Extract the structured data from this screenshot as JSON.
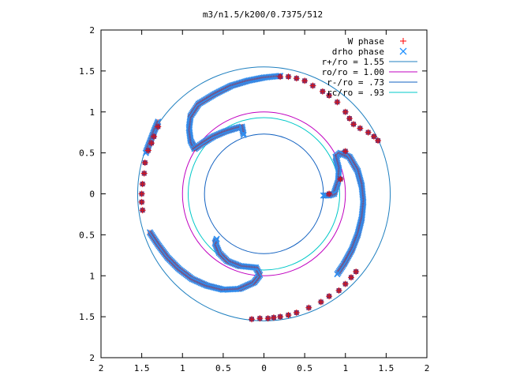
{
  "chart_data": {
    "type": "scatter",
    "title": "m3/n1.5/k200/0.7375/512",
    "xlim": [
      -2,
      2
    ],
    "ylim": [
      -2,
      2
    ],
    "x_tick_labels": [
      "2",
      "1.5",
      "1",
      "0.5",
      "0",
      "0.5",
      "1",
      "1.5",
      "2"
    ],
    "y_tick_labels": [
      "2",
      "1.5",
      "1",
      "0.5",
      "0",
      "0.5",
      "1",
      "1.5",
      "2"
    ],
    "x_tick_values": [
      -2,
      -1.5,
      -1,
      -0.5,
      0,
      0.5,
      1,
      1.5,
      2
    ],
    "y_tick_values": [
      2,
      1.5,
      1,
      0.5,
      0,
      -0.5,
      -1,
      -1.5,
      -2
    ],
    "legend_position": "top-right",
    "legend": [
      {
        "label": "W phase",
        "type": "points",
        "marker": "+",
        "color": "#ff0000"
      },
      {
        "label": "drho phase",
        "type": "points",
        "marker": "x",
        "color": "#1e90ff"
      },
      {
        "label": "r+/ro = 1.55",
        "type": "circle",
        "radius": 1.55,
        "color": "#2080c0"
      },
      {
        "label": "ro/ro = 1.00",
        "type": "circle",
        "radius": 1.0,
        "color": "#c000c0"
      },
      {
        "label": "r-/ro = .73",
        "type": "circle",
        "radius": 0.73,
        "color": "#1060c0"
      },
      {
        "label": "rc/ro = .93",
        "type": "circle",
        "radius": 0.93,
        "color": "#00c8c8"
      }
    ],
    "series": [
      {
        "name": "W phase",
        "points": [
          [
            -0.15,
            -1.53
          ],
          [
            -0.05,
            -1.52
          ],
          [
            0.05,
            -1.52
          ],
          [
            0.12,
            -1.51
          ],
          [
            0.2,
            -1.5
          ],
          [
            0.3,
            -1.48
          ],
          [
            0.4,
            -1.45
          ],
          [
            0.55,
            -1.39
          ],
          [
            0.7,
            -1.32
          ],
          [
            0.8,
            -1.25
          ],
          [
            0.92,
            -1.18
          ],
          [
            1.0,
            -1.1
          ],
          [
            1.07,
            -1.02
          ],
          [
            1.13,
            -0.95
          ],
          [
            -1.5,
            0.0
          ],
          [
            -1.5,
            -0.1
          ],
          [
            -1.49,
            -0.2
          ],
          [
            -1.49,
            0.12
          ],
          [
            -1.47,
            0.25
          ],
          [
            -1.46,
            0.38
          ],
          [
            -1.42,
            0.53
          ],
          [
            -1.38,
            0.62
          ],
          [
            -1.35,
            0.7
          ],
          [
            -1.3,
            0.82
          ],
          [
            0.2,
            1.43
          ],
          [
            0.3,
            1.43
          ],
          [
            0.4,
            1.41
          ],
          [
            0.5,
            1.38
          ],
          [
            0.6,
            1.32
          ],
          [
            0.72,
            1.25
          ],
          [
            0.8,
            1.2
          ],
          [
            0.9,
            1.12
          ],
          [
            1.0,
            1.0
          ],
          [
            1.05,
            0.92
          ],
          [
            1.1,
            0.85
          ],
          [
            1.18,
            0.8
          ],
          [
            1.28,
            0.75
          ],
          [
            1.35,
            0.7
          ],
          [
            1.4,
            0.65
          ],
          [
            1.0,
            0.52
          ],
          [
            0.94,
            0.18
          ],
          [
            0.8,
            0.0
          ]
        ]
      },
      {
        "name": "drho phase",
        "tracks": [
          [
            [
              -0.85,
              0.55
            ],
            [
              -0.9,
              0.65
            ],
            [
              -0.92,
              0.8
            ],
            [
              -0.9,
              0.95
            ],
            [
              -0.8,
              1.1
            ],
            [
              -0.6,
              1.22
            ],
            [
              -0.4,
              1.32
            ],
            [
              -0.2,
              1.38
            ],
            [
              0.0,
              1.42
            ],
            [
              0.2,
              1.44
            ]
          ],
          [
            [
              -0.85,
              0.55
            ],
            [
              -0.75,
              0.62
            ],
            [
              -0.62,
              0.7
            ],
            [
              -0.48,
              0.76
            ],
            [
              -0.35,
              0.8
            ],
            [
              -0.27,
              0.82
            ],
            [
              -0.25,
              0.72
            ]
          ],
          [
            [
              -1.4,
              -0.47
            ],
            [
              -1.3,
              -0.62
            ],
            [
              -1.18,
              -0.78
            ],
            [
              -1.04,
              -0.92
            ],
            [
              -0.88,
              -1.04
            ],
            [
              -0.7,
              -1.12
            ],
            [
              -0.5,
              -1.17
            ],
            [
              -0.3,
              -1.16
            ],
            [
              -0.12,
              -1.08
            ],
            [
              -0.05,
              -0.99
            ],
            [
              -0.1,
              -0.9
            ]
          ],
          [
            [
              -0.1,
              -0.9
            ],
            [
              -0.3,
              -0.88
            ],
            [
              -0.45,
              -0.82
            ],
            [
              -0.55,
              -0.72
            ],
            [
              -0.6,
              -0.6
            ],
            [
              -0.58,
              -0.55
            ]
          ],
          [
            [
              0.88,
              0.45
            ],
            [
              0.94,
              0.5
            ],
            [
              1.05,
              0.45
            ],
            [
              1.15,
              0.28
            ],
            [
              1.2,
              0.1
            ],
            [
              1.22,
              -0.1
            ],
            [
              1.2,
              -0.3
            ],
            [
              1.15,
              -0.5
            ],
            [
              1.08,
              -0.68
            ],
            [
              0.98,
              -0.86
            ],
            [
              0.9,
              -0.98
            ]
          ],
          [
            [
              0.88,
              0.45
            ],
            [
              0.92,
              0.3
            ],
            [
              0.91,
              0.15
            ],
            [
              0.86,
              0.0
            ],
            [
              0.8,
              -0.02
            ],
            [
              0.73,
              -0.02
            ]
          ],
          [
            [
              -1.3,
              0.88
            ],
            [
              -1.35,
              0.76
            ],
            [
              -1.4,
              0.63
            ],
            [
              -1.45,
              0.5
            ]
          ]
        ]
      }
    ]
  }
}
